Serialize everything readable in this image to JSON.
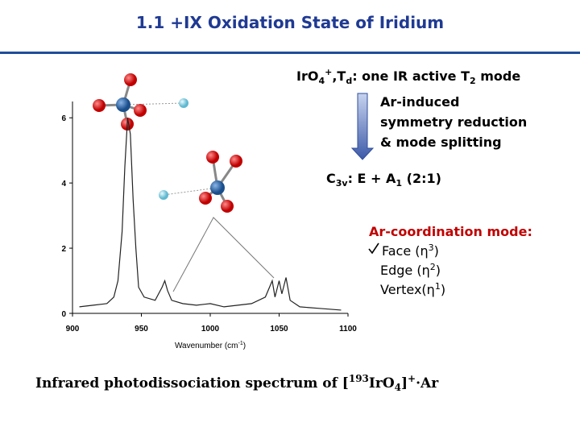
{
  "title": "1.1 +IX Oxidation State of Iridium",
  "td_line": [
    "IrO",
    "4",
    "+",
    ",T",
    "d",
    ": one IR active T",
    "2",
    " mode"
  ],
  "arrow_text": [
    "Ar-induced",
    "symmetry reduction",
    "& mode splitting"
  ],
  "c3v_line": [
    "C",
    "3v",
    ": E + A",
    "1",
    " (2:1)"
  ],
  "coordination": {
    "heading": "Ar-coordination mode:",
    "face": [
      "Face (η",
      "3",
      ")"
    ],
    "edge": [
      "Edge (η",
      "2",
      ")"
    ],
    "vertex": [
      "Vertex(η",
      "1",
      ")"
    ]
  },
  "caption": [
    "Infrared photodissociation spectrum of [",
    "193",
    "IrO",
    "4",
    "]",
    "+",
    "·Ar"
  ],
  "spectrum": {
    "type": "line",
    "xlabel": [
      "Wavenumber (cm",
      "-1",
      ")"
    ],
    "x": [
      905,
      915,
      925,
      930,
      933,
      936,
      938,
      940,
      942,
      944,
      946,
      948,
      952,
      960,
      965,
      967,
      969,
      972,
      980,
      990,
      1000,
      1010,
      1020,
      1030,
      1040,
      1045,
      1047,
      1050,
      1052,
      1055,
      1058,
      1065,
      1080,
      1095
    ],
    "values": [
      0.2,
      0.25,
      0.3,
      0.5,
      1,
      2.5,
      4.5,
      6,
      5.5,
      3.5,
      2,
      0.8,
      0.5,
      0.4,
      0.8,
      1.0,
      0.7,
      0.4,
      0.3,
      0.25,
      0.3,
      0.2,
      0.25,
      0.3,
      0.5,
      1.0,
      0.5,
      1.0,
      0.6,
      1.1,
      0.4,
      0.2,
      0.15,
      0.1
    ],
    "color": "#222222",
    "xlim": [
      900,
      1100
    ],
    "ylim": [
      0,
      6.5
    ],
    "xticks": [
      900,
      950,
      1000,
      1050,
      1100
    ],
    "yticks": [
      0,
      2,
      4,
      6
    ]
  }
}
